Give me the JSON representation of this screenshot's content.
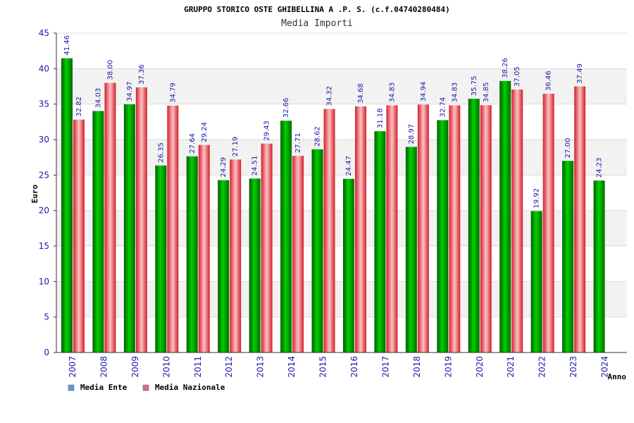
{
  "title": "GRUPPO STORICO OSTE GHIBELLINA A .P. S. (c.f.04740280484)",
  "subtitle": "Media Importi",
  "colors": {
    "ente": "#00b000",
    "ente_dark": "#006400",
    "nazionale": "#e8303a",
    "nazionale_light": "#ffb3b8",
    "legend_ente": "#5b9bd5",
    "legend_nazionale": "#d96aa0",
    "tick": "#1a1aa6",
    "band": "#f2f2f2"
  },
  "chart_data": {
    "type": "bar",
    "title": "GRUPPO STORICO OSTE GHIBELLINA A .P. S. (c.f.04740280484)",
    "subtitle": "Media Importi",
    "xlabel": "Anno",
    "ylabel": "Euro",
    "ylim": [
      0,
      45
    ],
    "yticks": [
      "0",
      "5",
      "10",
      "15",
      "20",
      "25",
      "30",
      "35",
      "40",
      "45"
    ],
    "grid": true,
    "legend_position": "bottom-left",
    "categories": [
      "2007",
      "2008",
      "2009",
      "2010",
      "2011",
      "2012",
      "2013",
      "2014",
      "2015",
      "2016",
      "2017",
      "2018",
      "2019",
      "2020",
      "2021",
      "2022",
      "2023",
      "2024"
    ],
    "series": [
      {
        "name": "Media Ente",
        "values": [
          41.46,
          34.03,
          34.97,
          26.35,
          27.64,
          24.29,
          24.51,
          32.66,
          28.62,
          24.47,
          31.18,
          28.97,
          32.74,
          35.75,
          38.26,
          19.92,
          27.0,
          24.23
        ],
        "labels": [
          "41.46",
          "34.03",
          "34.97",
          "26.35",
          "27.64",
          "24.29",
          "24.51",
          "32.66",
          "28.62",
          "24.47",
          "31.18",
          "28.97",
          "32.74",
          "35.75",
          "38.26",
          "19.92",
          "27.00",
          "24.23"
        ]
      },
      {
        "name": "Media Nazionale",
        "values": [
          32.82,
          38.0,
          37.36,
          34.79,
          29.24,
          27.19,
          29.43,
          27.71,
          34.32,
          34.68,
          34.83,
          34.94,
          34.83,
          34.85,
          37.05,
          36.46,
          37.49,
          null
        ],
        "labels": [
          "32.82",
          "38.00",
          "37.36",
          "34.79",
          "29.24",
          "27.19",
          "29.43",
          "27.71",
          "34.32",
          "34.68",
          "34.83",
          "34.94",
          "34.83",
          "34.85",
          "37.05",
          "36.46",
          "37.49",
          ""
        ]
      }
    ]
  }
}
